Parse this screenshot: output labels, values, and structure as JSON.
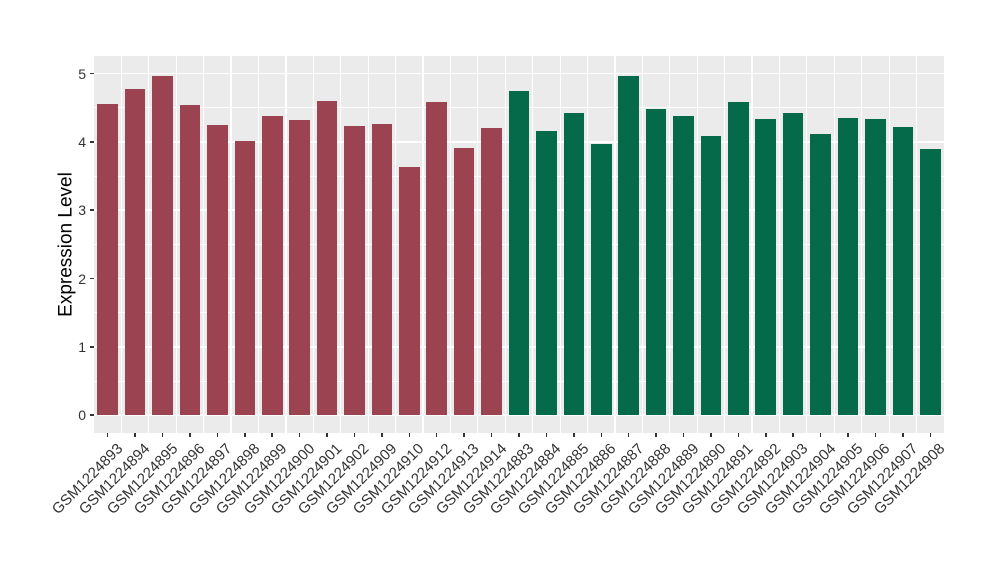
{
  "figure": {
    "background": "#FFFFFF",
    "panel_background": "#EBEBEB",
    "grid_color": "#FFFFFF",
    "axis_text_color": "#333333",
    "axis_title_color": "#000000"
  },
  "chart_data": {
    "type": "bar",
    "title": "",
    "xlabel": "",
    "ylabel": "Expression Level",
    "ylim": [
      0,
      5
    ],
    "y_ticks": [
      0,
      1,
      2,
      3,
      4,
      5
    ],
    "y_minor_ticks": [
      0.5,
      1.5,
      2.5,
      3.5,
      4.5
    ],
    "grid": "on",
    "legend": "none",
    "groups": [
      {
        "name": "left-group",
        "color": "#9C4351"
      },
      {
        "name": "right-group",
        "color": "#046A49"
      }
    ],
    "bars": [
      {
        "label": "GSM1224893",
        "value": 4.55,
        "group": 0
      },
      {
        "label": "GSM1224894",
        "value": 4.78,
        "group": 0
      },
      {
        "label": "GSM1224895",
        "value": 4.97,
        "group": 0
      },
      {
        "label": "GSM1224896",
        "value": 4.54,
        "group": 0
      },
      {
        "label": "GSM1224897",
        "value": 4.25,
        "group": 0
      },
      {
        "label": "GSM1224898",
        "value": 4.01,
        "group": 0
      },
      {
        "label": "GSM1224899",
        "value": 4.38,
        "group": 0
      },
      {
        "label": "GSM1224900",
        "value": 4.32,
        "group": 0
      },
      {
        "label": "GSM1224901",
        "value": 4.6,
        "group": 0
      },
      {
        "label": "GSM1224902",
        "value": 4.23,
        "group": 0
      },
      {
        "label": "GSM1224909",
        "value": 4.26,
        "group": 0
      },
      {
        "label": "GSM1224910",
        "value": 3.64,
        "group": 0
      },
      {
        "label": "GSM1224912",
        "value": 4.59,
        "group": 0
      },
      {
        "label": "GSM1224913",
        "value": 3.91,
        "group": 0
      },
      {
        "label": "GSM1224914",
        "value": 4.2,
        "group": 0
      },
      {
        "label": "GSM1224883",
        "value": 4.74,
        "group": 1
      },
      {
        "label": "GSM1224884",
        "value": 4.16,
        "group": 1
      },
      {
        "label": "GSM1224885",
        "value": 4.43,
        "group": 1
      },
      {
        "label": "GSM1224886",
        "value": 3.97,
        "group": 1
      },
      {
        "label": "GSM1224887",
        "value": 4.97,
        "group": 1
      },
      {
        "label": "GSM1224888",
        "value": 4.48,
        "group": 1
      },
      {
        "label": "GSM1224889",
        "value": 4.38,
        "group": 1
      },
      {
        "label": "GSM1224890",
        "value": 4.08,
        "group": 1
      },
      {
        "label": "GSM1224891",
        "value": 4.58,
        "group": 1
      },
      {
        "label": "GSM1224892",
        "value": 4.33,
        "group": 1
      },
      {
        "label": "GSM1224903",
        "value": 4.43,
        "group": 1
      },
      {
        "label": "GSM1224904",
        "value": 4.11,
        "group": 1
      },
      {
        "label": "GSM1224905",
        "value": 4.35,
        "group": 1
      },
      {
        "label": "GSM1224906",
        "value": 4.33,
        "group": 1
      },
      {
        "label": "GSM1224907",
        "value": 4.22,
        "group": 1
      },
      {
        "label": "GSM1224908",
        "value": 3.89,
        "group": 1
      }
    ]
  }
}
